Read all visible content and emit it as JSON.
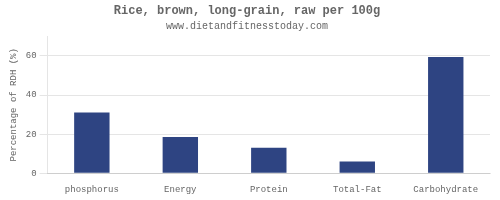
{
  "chart_data": {
    "type": "bar",
    "title": "Rice, brown, long-grain, raw per 100g",
    "subtitle": "www.dietandfitnesstoday.com",
    "categories": [
      "phosphorus",
      "Energy",
      "Protein",
      "Total-Fat",
      "Carbohydrate"
    ],
    "values": [
      31,
      18.5,
      13,
      6,
      59.5
    ],
    "color": "#2e4482",
    "ylabel": "Percentage of RDH (%)",
    "ylim": [
      0,
      70
    ],
    "yticks": [
      0,
      20,
      40,
      60
    ],
    "grid": true
  }
}
